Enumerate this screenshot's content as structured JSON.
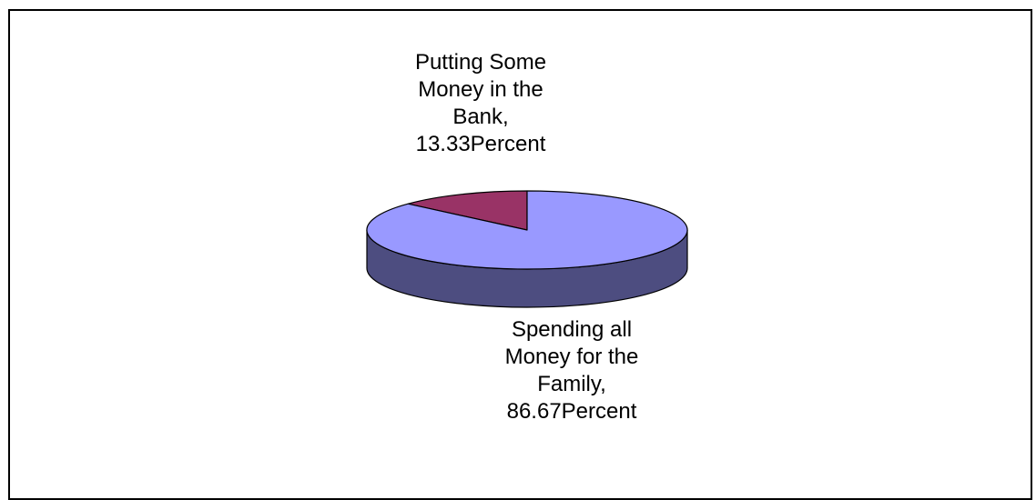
{
  "chart_data": {
    "type": "pie",
    "style": "3d",
    "slices": [
      {
        "name": "Putting Some Money in the Bank",
        "value": 13.33,
        "color": "#993366",
        "side_color": "#5a1f3d",
        "label_lines": [
          "Putting Some",
          "Money in the",
          "Bank,",
          "13.33Percent"
        ]
      },
      {
        "name": "Spending all Money for the Family",
        "value": 86.67,
        "color": "#9999ff",
        "side_color": "#4d4d80",
        "label_lines": [
          "Spending all",
          "Money for the",
          "Family,",
          "86.67Percent"
        ]
      }
    ],
    "title": "",
    "legend": "none"
  }
}
